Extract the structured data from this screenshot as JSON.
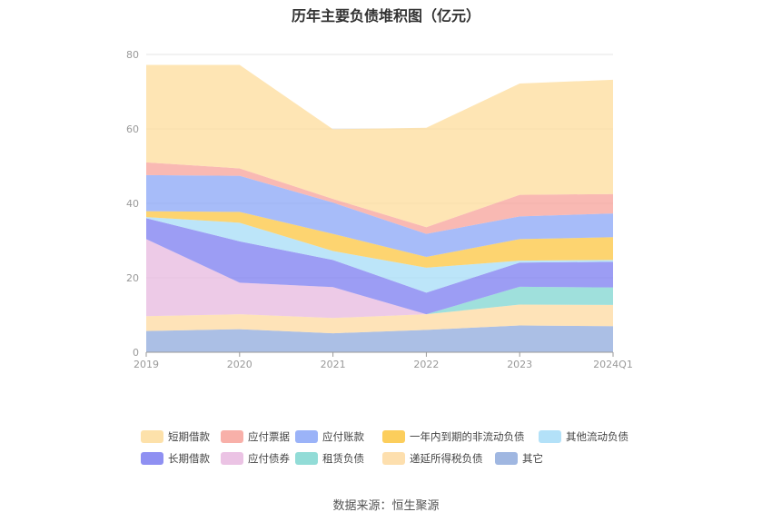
{
  "title": "历年主要负债堆积图（亿元）",
  "source": "数据来源：恒生聚源",
  "chart_data": {
    "type": "area",
    "stacked": true,
    "title": "历年主要负债堆积图（亿元）",
    "xlabel": "",
    "ylabel": "",
    "categories": [
      "2019",
      "2020",
      "2021",
      "2022",
      "2023",
      "2024Q1"
    ],
    "ylim": [
      0,
      80
    ],
    "yticks": [
      0,
      20,
      40,
      60,
      80
    ],
    "grid": true,
    "legend_position": "bottom",
    "series": [
      {
        "name": "其它",
        "color": "#8faadc",
        "values": [
          5.7,
          6.2,
          5.1,
          6.0,
          7.2,
          7.0
        ]
      },
      {
        "name": "递延所得税负债",
        "color": "#fdd9a0",
        "values": [
          4.0,
          4.0,
          4.1,
          4.2,
          5.6,
          5.7
        ]
      },
      {
        "name": "租赁负债",
        "color": "#7fd6d0",
        "values": [
          0,
          0,
          0,
          0,
          4.8,
          4.7
        ]
      },
      {
        "name": "应付债券",
        "color": "#e7b8df",
        "values": [
          20.7,
          8.5,
          8.3,
          0,
          0,
          0
        ]
      },
      {
        "name": "长期借款",
        "color": "#7b7cf0",
        "values": [
          5.6,
          11.1,
          7.3,
          5.8,
          6.5,
          6.9
        ]
      },
      {
        "name": "其他流动负债",
        "color": "#a6dcf7",
        "values": [
          0.3,
          5.0,
          2.4,
          6.7,
          0.5,
          0.5
        ]
      },
      {
        "name": "一年内到期的非流动负债",
        "color": "#fcc640",
        "values": [
          1.6,
          2.9,
          4.6,
          2.9,
          5.8,
          6.1
        ]
      },
      {
        "name": "应付账款",
        "color": "#8aa6f7",
        "values": [
          9.7,
          9.7,
          8.4,
          6.2,
          6.1,
          6.4
        ]
      },
      {
        "name": "应付票据",
        "color": "#f7a29a",
        "values": [
          3.4,
          2.0,
          1.0,
          1.8,
          5.8,
          5.2
        ]
      },
      {
        "name": "短期借款",
        "color": "#fddc9b",
        "values": [
          26.2,
          27.8,
          18.7,
          26.7,
          29.9,
          30.7
        ]
      }
    ],
    "legend_order": [
      "短期借款",
      "应付票据",
      "应付账款",
      "一年内到期的非流动负债",
      "其他流动负债",
      "长期借款",
      "应付债券",
      "租赁负债",
      "递延所得税负债",
      "其它"
    ]
  }
}
